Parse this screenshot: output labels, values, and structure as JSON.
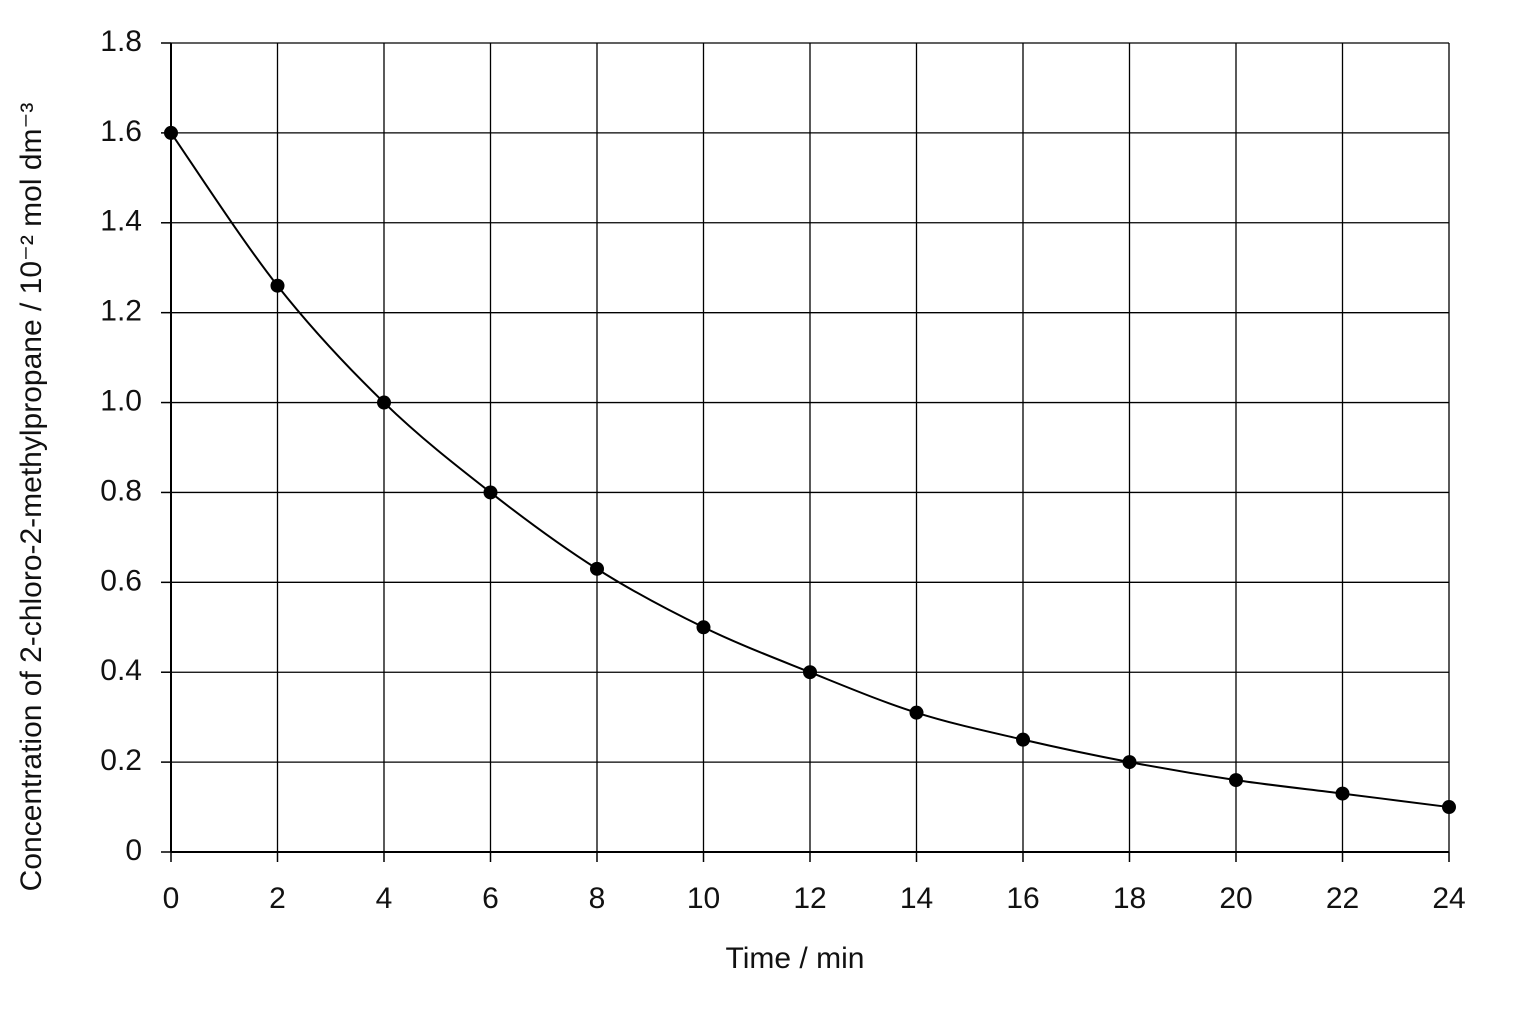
{
  "chart_data": {
    "type": "line",
    "x_label": "Time / min",
    "y_label": "Concentration of 2-chloro-2-methylpropane / 10⁻² mol dm⁻³",
    "x": [
      0,
      2,
      4,
      6,
      8,
      10,
      12,
      14,
      16,
      18,
      20,
      22,
      24
    ],
    "series": [
      {
        "color": "#000000",
        "values": [
          1.6,
          1.26,
          1.0,
          0.8,
          0.63,
          0.5,
          0.4,
          0.31,
          0.25,
          0.2,
          0.16,
          0.13,
          0.1
        ]
      }
    ],
    "smooth": true,
    "markers": true,
    "xlim": [
      0,
      24
    ],
    "xticks": [
      0,
      2,
      4,
      6,
      8,
      10,
      12,
      14,
      16,
      18,
      20,
      22,
      24
    ],
    "ylim": [
      0,
      1.8
    ],
    "yticks": [
      0,
      0.2,
      0.4,
      0.6,
      0.8,
      {
        "value": 1,
        "label": "1.0"
      },
      1.2,
      1.4,
      1.6,
      1.8
    ],
    "grid": true
  }
}
